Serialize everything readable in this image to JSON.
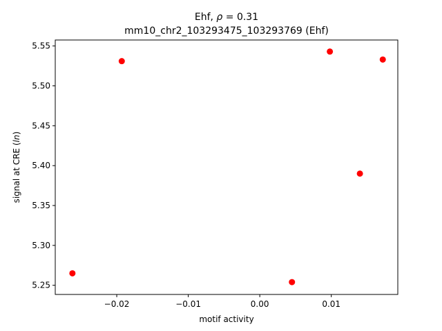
{
  "chart_data": {
    "type": "scatter",
    "title_line1_prefix": "Ehf, ",
    "title_rho_symbol": "ρ",
    "title_rho_value": " = 0.31",
    "title_line2": "mm10_chr2_103293475_103293769 (Ehf)",
    "xlabel": "motif activity",
    "ylabel_prefix": "signal at CRE (",
    "ylabel_italic": "ln",
    "ylabel_suffix": ")",
    "xlim": [
      -0.0286,
      0.0193
    ],
    "ylim": [
      5.2385,
      5.5575
    ],
    "xticks": [
      -0.02,
      -0.01,
      0.0,
      0.01
    ],
    "xtick_labels": [
      "−0.02",
      "−0.01",
      "0.00",
      "0.01"
    ],
    "yticks": [
      5.25,
      5.3,
      5.35,
      5.4,
      5.45,
      5.5,
      5.55
    ],
    "ytick_labels": [
      "5.25",
      "5.30",
      "5.35",
      "5.40",
      "5.45",
      "5.50",
      "5.55"
    ],
    "marker_color": "#ff0000",
    "series": [
      {
        "points": [
          {
            "x": -0.0262,
            "y": 5.265
          },
          {
            "x": -0.0193,
            "y": 5.531
          },
          {
            "x": 0.0045,
            "y": 5.254
          },
          {
            "x": 0.0098,
            "y": 5.543
          },
          {
            "x": 0.014,
            "y": 5.39
          },
          {
            "x": 0.0172,
            "y": 5.533
          }
        ]
      }
    ]
  }
}
